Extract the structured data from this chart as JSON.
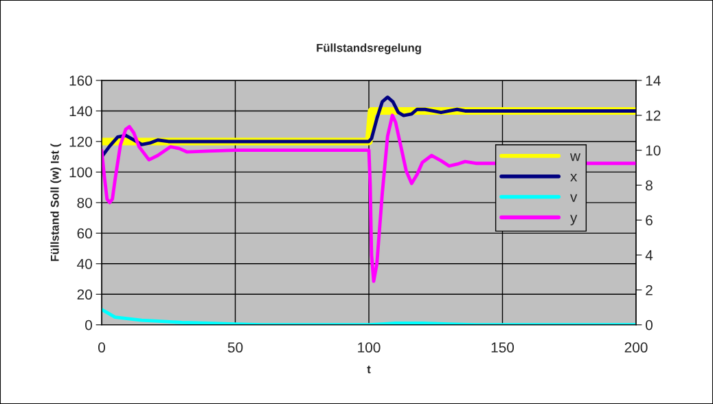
{
  "chart_data": {
    "type": "line",
    "title": "Füllstandsregelung",
    "xlabel": "t",
    "ylabel": "Füllstand Soll (w) Ist (",
    "xlim": [
      0,
      200
    ],
    "xticks": [
      0,
      50,
      100,
      150,
      200
    ],
    "ylim": [
      0,
      160
    ],
    "yticks": [
      0,
      20,
      40,
      60,
      80,
      100,
      120,
      140,
      160
    ],
    "y2lim": [
      0,
      14
    ],
    "y2ticks": [
      0,
      2,
      4,
      6,
      8,
      10,
      12,
      14
    ],
    "grid": true,
    "legend": "right",
    "series": [
      {
        "name": "w",
        "color": "#ffff00",
        "x": [
          0,
          100,
          101,
          200
        ],
        "values": [
          120,
          120,
          140,
          140
        ]
      },
      {
        "name": "x",
        "color": "#000080",
        "x": [
          0,
          3,
          6,
          9,
          12,
          15,
          18,
          21,
          25,
          30,
          100,
          101,
          103,
          105,
          107,
          109,
          111,
          113,
          116,
          118,
          121,
          124,
          127,
          130,
          133,
          136,
          140,
          200
        ],
        "values": [
          110,
          117,
          123,
          124,
          121,
          118,
          119,
          121,
          120,
          120,
          120,
          122,
          135,
          146,
          149,
          146,
          139,
          137,
          138,
          141,
          141,
          140,
          139,
          140,
          141,
          140,
          140,
          140
        ]
      },
      {
        "name": "v",
        "color": "#00ffff",
        "x": [
          0,
          2,
          5,
          10,
          15,
          20,
          30,
          40,
          50,
          60,
          100,
          105,
          110,
          120,
          130,
          140,
          200
        ],
        "values": [
          10,
          8,
          5,
          4,
          3,
          2.5,
          1.5,
          1,
          0.5,
          0,
          0,
          0.5,
          1,
          1,
          0.5,
          0,
          0
        ]
      },
      {
        "name": "y",
        "color": "#ff00ff",
        "axis": "y2",
        "x": [
          0,
          1,
          2,
          3,
          4,
          5,
          7,
          9,
          10.4,
          12,
          14,
          17.7,
          21,
          25.8,
          29,
          32,
          40,
          50,
          100,
          100.5,
          101,
          101.8,
          103,
          105,
          107,
          108.8,
          110,
          112,
          114,
          116,
          118,
          120,
          123.5,
          127,
          130,
          133,
          136,
          140,
          200
        ],
        "values": [
          10,
          8.5,
          7.2,
          7,
          7.2,
          8.3,
          10.3,
          11.2,
          11.35,
          11,
          10.2,
          9.45,
          9.7,
          10.2,
          10.1,
          9.9,
          9.95,
          10,
          10,
          8,
          4,
          2.5,
          3.5,
          7.5,
          10.8,
          12,
          11.6,
          10.2,
          8.8,
          8.1,
          8.6,
          9.3,
          9.7,
          9.4,
          9.1,
          9.2,
          9.35,
          9.25,
          9.25
        ]
      }
    ]
  }
}
